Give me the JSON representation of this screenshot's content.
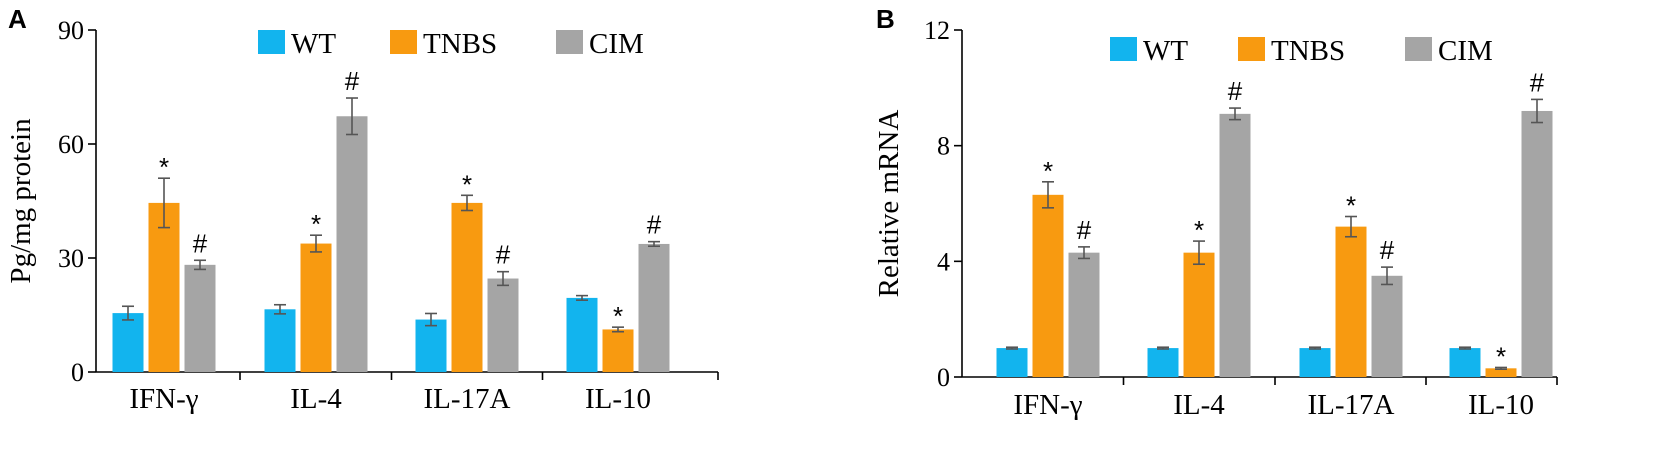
{
  "chart_data": [
    {
      "type": "bar",
      "panel_label": "A",
      "ylabel": "Pg/mg protein",
      "ylim": [
        0,
        90
      ],
      "yticks": [
        0,
        30,
        60,
        90
      ],
      "categories": [
        "IFN-γ",
        "IL-4",
        "IL-17A",
        "IL-10"
      ],
      "legend_position": "top",
      "series": [
        {
          "name": "WT",
          "color": "#12b4ee",
          "values": [
            15.5,
            16.5,
            13.8,
            19.5
          ],
          "errors": [
            1.8,
            1.2,
            1.6,
            0.6
          ],
          "marks": [
            "",
            "",
            "",
            ""
          ]
        },
        {
          "name": "TNBS",
          "color": "#f89a10",
          "values": [
            44.5,
            33.8,
            44.5,
            11.2
          ],
          "errors": [
            6.5,
            2.2,
            2.0,
            0.6
          ],
          "marks": [
            "*",
            "*",
            "*",
            "*"
          ]
        },
        {
          "name": "CIM",
          "color": "#a5a5a5",
          "values": [
            28.2,
            67.3,
            24.6,
            33.7
          ],
          "errors": [
            1.2,
            4.8,
            1.8,
            0.6
          ],
          "marks": [
            "#",
            "#",
            "#",
            "#"
          ]
        }
      ]
    },
    {
      "type": "bar",
      "panel_label": "B",
      "ylabel": "Relative mRNA",
      "ylim": [
        0,
        12
      ],
      "yticks": [
        0,
        4,
        8,
        12
      ],
      "categories": [
        "IFN-γ",
        "IL-4",
        "IL-17A",
        "IL-10"
      ],
      "legend_position": "top",
      "series": [
        {
          "name": "WT",
          "color": "#12b4ee",
          "values": [
            1.0,
            1.0,
            1.0,
            1.0
          ],
          "errors": [
            0.03,
            0.03,
            0.03,
            0.03
          ],
          "marks": [
            "",
            "",
            "",
            ""
          ]
        },
        {
          "name": "TNBS",
          "color": "#f89a10",
          "values": [
            6.3,
            4.3,
            5.2,
            0.3
          ],
          "errors": [
            0.45,
            0.4,
            0.35,
            0.03
          ],
          "marks": [
            "*",
            "*",
            "*",
            "*"
          ]
        },
        {
          "name": "CIM",
          "color": "#a5a5a5",
          "values": [
            4.3,
            9.1,
            3.5,
            9.2
          ],
          "errors": [
            0.2,
            0.2,
            0.3,
            0.4
          ],
          "marks": [
            "#",
            "#",
            "#",
            "#"
          ]
        }
      ]
    }
  ]
}
